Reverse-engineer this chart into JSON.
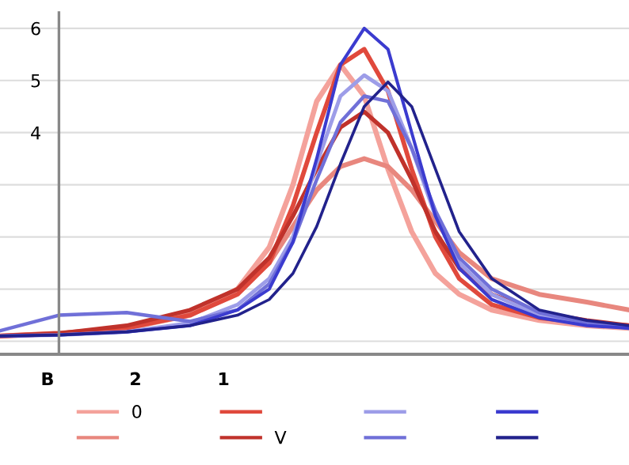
{
  "chart_data": {
    "type": "line",
    "x": [
      3.54,
      2.87,
      2.1,
      1.38,
      0.84,
      0.48,
      0.21,
      -0.06,
      -0.33,
      -0.6,
      -0.87,
      -1.14,
      -1.41,
      -1.68,
      -2.05,
      -2.59,
      -3.13,
      -3.61
    ],
    "series": [
      {
        "name": "0",
        "color": "#f4a29b",
        "values": [
          0.1,
          0.15,
          0.25,
          0.5,
          1.0,
          1.8,
          3.0,
          4.6,
          5.3,
          4.7,
          3.3,
          2.1,
          1.3,
          0.9,
          0.6,
          0.4,
          0.3,
          0.25
        ]
      },
      {
        "color": "#e8877e",
        "values": [
          0.1,
          0.15,
          0.25,
          0.55,
          1.0,
          1.5,
          2.2,
          2.9,
          3.35,
          3.5,
          3.35,
          2.9,
          2.3,
          1.7,
          1.2,
          0.9,
          0.75,
          0.6
        ]
      },
      {
        "color": "#e0493c",
        "values": [
          0.1,
          0.15,
          0.25,
          0.5,
          0.9,
          1.5,
          2.6,
          4.0,
          5.3,
          5.6,
          4.8,
          3.3,
          2.0,
          1.2,
          0.7,
          0.45,
          0.35,
          0.3
        ]
      },
      {
        "name": "V",
        "color": "#c0322b",
        "values": [
          0.1,
          0.15,
          0.3,
          0.6,
          1.0,
          1.6,
          2.4,
          3.3,
          4.1,
          4.4,
          4.0,
          3.1,
          2.1,
          1.4,
          0.9,
          0.55,
          0.4,
          0.3
        ]
      },
      {
        "color": "#9d9de8",
        "values": [
          0.1,
          0.12,
          0.18,
          0.35,
          0.7,
          1.2,
          2.0,
          3.4,
          4.7,
          5.1,
          4.8,
          3.7,
          2.4,
          1.5,
          0.9,
          0.5,
          0.35,
          0.25
        ]
      },
      {
        "color": "#7070d8",
        "values": [
          0.2,
          0.5,
          0.55,
          0.38,
          0.6,
          1.1,
          1.9,
          3.1,
          4.2,
          4.7,
          4.6,
          3.7,
          2.5,
          1.6,
          1.0,
          0.55,
          0.35,
          0.25
        ]
      },
      {
        "color": "#3b3bcf",
        "values": [
          0.1,
          0.12,
          0.18,
          0.3,
          0.6,
          1.0,
          1.9,
          3.5,
          5.3,
          6.0,
          5.6,
          4.0,
          2.4,
          1.4,
          0.8,
          0.45,
          0.3,
          0.25
        ]
      },
      {
        "color": "#22228c",
        "values": [
          0.1,
          0.12,
          0.18,
          0.3,
          0.5,
          0.8,
          1.3,
          2.2,
          3.4,
          4.5,
          4.97,
          4.5,
          3.3,
          2.1,
          1.2,
          0.6,
          0.4,
          0.3
        ]
      }
    ],
    "xlim": [
      3.54,
      -3.61
    ],
    "xticks": [
      {
        "value": 3,
        "label": "B"
      },
      2,
      1
    ],
    "ylim": [
      -0.25,
      6.3
    ],
    "yticks": [
      {
        "value": 0,
        "label": null
      },
      {
        "value": 1,
        "label": null
      },
      {
        "value": 2,
        "label": null
      },
      {
        "value": 3,
        "label": null
      },
      4,
      5,
      6
    ],
    "grid": "y",
    "legend": "bottom"
  }
}
